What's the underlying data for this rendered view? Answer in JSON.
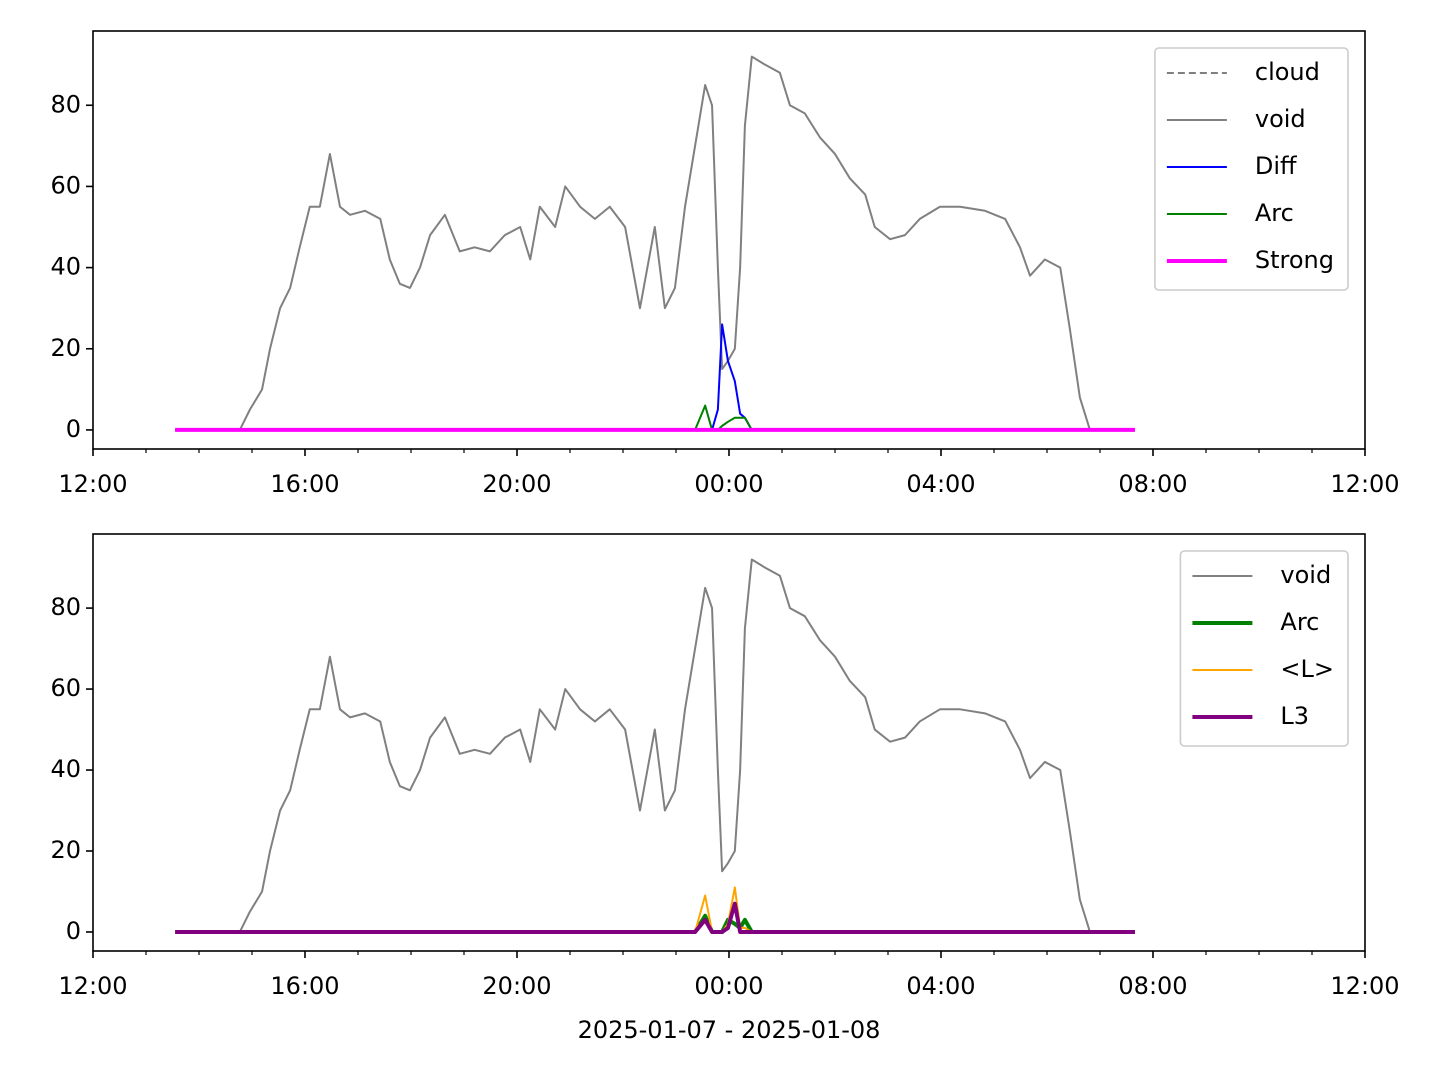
{
  "chart_data": [
    {
      "type": "line",
      "x": [
        13.55,
        14.77,
        14.96,
        15.19,
        15.34,
        15.53,
        15.72,
        15.9,
        16.09,
        16.28,
        16.47,
        16.66,
        16.85,
        17.13,
        17.42,
        17.6,
        17.79,
        17.98,
        18.17,
        18.36,
        18.64,
        18.92,
        19.2,
        19.49,
        19.77,
        20.06,
        20.25,
        20.43,
        20.72,
        20.91,
        21.19,
        21.47,
        21.75,
        22.04,
        22.32,
        22.6,
        22.79,
        22.98,
        23.17,
        23.36,
        23.55,
        23.68,
        23.79,
        23.87,
        23.98,
        24.11,
        24.21,
        24.3,
        24.43,
        24.68,
        24.96,
        25.15,
        25.43,
        25.72,
        26.0,
        26.28,
        26.57,
        26.75,
        27.04,
        27.32,
        27.6,
        27.98,
        28.36,
        28.83,
        29.21,
        29.49,
        29.68,
        29.96,
        30.25,
        30.43,
        30.62,
        30.81,
        31.66
      ],
      "xlim": [
        12,
        36
      ],
      "xticks": [
        {
          "value": 12,
          "label": "12:00"
        },
        {
          "value": 16,
          "label": "16:00"
        },
        {
          "value": 20,
          "label": "20:00"
        },
        {
          "value": 24,
          "label": "00:00"
        },
        {
          "value": 28,
          "label": "04:00"
        },
        {
          "value": 32,
          "label": "08:00"
        },
        {
          "value": 36,
          "label": "12:00"
        }
      ],
      "xminorticks": [
        13,
        14,
        15,
        17,
        18,
        19,
        21,
        22,
        23,
        25,
        26,
        27,
        29,
        30,
        31,
        33,
        34,
        35
      ],
      "ylim": [
        -4.7,
        98.3
      ],
      "yticks": [
        0,
        20,
        40,
        60,
        80
      ],
      "legend": "upper right",
      "series": [
        {
          "name": "cloud",
          "color": "#808080",
          "linestyle": "dashed",
          "linewidth": 2,
          "values": [
            0,
            0,
            0,
            0,
            0,
            0,
            0,
            0,
            0,
            0,
            0,
            0,
            0,
            0,
            0,
            0,
            0,
            0,
            0,
            0,
            0,
            0,
            0,
            0,
            0,
            0,
            0,
            0,
            0,
            0,
            0,
            0,
            0,
            0,
            0,
            0,
            0,
            0,
            0,
            0,
            0,
            0,
            0,
            0,
            0,
            0,
            0,
            0,
            0,
            0,
            0,
            0,
            0,
            0,
            0,
            0,
            0,
            0,
            0,
            0,
            0,
            0,
            0,
            0,
            0,
            0,
            0,
            0,
            0,
            0,
            0,
            0,
            0
          ]
        },
        {
          "name": "void",
          "color": "#808080",
          "linestyle": "solid",
          "linewidth": 2,
          "values": [
            0,
            0,
            5,
            10,
            20,
            30,
            35,
            45,
            55,
            55,
            68,
            55,
            53,
            54,
            52,
            42,
            36,
            35,
            40,
            48,
            53,
            44,
            45,
            44,
            48,
            50,
            42,
            55,
            50,
            60,
            55,
            52,
            55,
            50,
            30,
            50,
            30,
            35,
            55,
            70,
            85,
            80,
            40,
            15,
            17,
            20,
            40,
            75,
            92,
            90,
            88,
            80,
            78,
            72,
            68,
            62,
            58,
            50,
            47,
            48,
            52,
            55,
            55,
            54,
            52,
            45,
            38,
            42,
            40,
            25,
            8,
            0,
            0
          ]
        },
        {
          "name": "Diff",
          "color": "#0000ff",
          "linestyle": "solid",
          "linewidth": 2,
          "values": [
            0,
            0,
            0,
            0,
            0,
            0,
            0,
            0,
            0,
            0,
            0,
            0,
            0,
            0,
            0,
            0,
            0,
            0,
            0,
            0,
            0,
            0,
            0,
            0,
            0,
            0,
            0,
            0,
            0,
            0,
            0,
            0,
            0,
            0,
            0,
            0,
            0,
            0,
            0,
            0,
            0,
            0,
            5,
            26,
            17,
            12,
            4,
            3,
            0,
            0,
            0,
            0,
            0,
            0,
            0,
            0,
            0,
            0,
            0,
            0,
            0,
            0,
            0,
            0,
            0,
            0,
            0,
            0,
            0,
            0,
            0,
            0,
            0
          ]
        },
        {
          "name": "Arc",
          "color": "#008000",
          "linestyle": "solid",
          "linewidth": 2,
          "values": [
            0,
            0,
            0,
            0,
            0,
            0,
            0,
            0,
            0,
            0,
            0,
            0,
            0,
            0,
            0,
            0,
            0,
            0,
            0,
            0,
            0,
            0,
            0,
            0,
            0,
            0,
            0,
            0,
            0,
            0,
            0,
            0,
            0,
            0,
            0,
            0,
            0,
            0,
            0,
            0,
            6,
            0,
            0,
            1,
            2,
            3,
            3,
            3,
            0,
            0,
            0,
            0,
            0,
            0,
            0,
            0,
            0,
            0,
            0,
            0,
            0,
            0,
            0,
            0,
            0,
            0,
            0,
            0,
            0,
            0,
            0,
            0,
            0
          ]
        },
        {
          "name": "Strong",
          "color": "#ff00ff",
          "linestyle": "solid",
          "linewidth": 4,
          "values": [
            0,
            0,
            0,
            0,
            0,
            0,
            0,
            0,
            0,
            0,
            0,
            0,
            0,
            0,
            0,
            0,
            0,
            0,
            0,
            0,
            0,
            0,
            0,
            0,
            0,
            0,
            0,
            0,
            0,
            0,
            0,
            0,
            0,
            0,
            0,
            0,
            0,
            0,
            0,
            0,
            0,
            0,
            0,
            0,
            0,
            0,
            0,
            0,
            0,
            0,
            0,
            0,
            0,
            0,
            0,
            0,
            0,
            0,
            0,
            0,
            0,
            0,
            0,
            0,
            0,
            0,
            0,
            0,
            0,
            0,
            0,
            0,
            0
          ]
        }
      ]
    },
    {
      "type": "line",
      "x": [
        13.55,
        14.77,
        14.96,
        15.19,
        15.34,
        15.53,
        15.72,
        15.9,
        16.09,
        16.28,
        16.47,
        16.66,
        16.85,
        17.13,
        17.42,
        17.6,
        17.79,
        17.98,
        18.17,
        18.36,
        18.64,
        18.92,
        19.2,
        19.49,
        19.77,
        20.06,
        20.25,
        20.43,
        20.72,
        20.91,
        21.19,
        21.47,
        21.75,
        22.04,
        22.32,
        22.6,
        22.79,
        22.98,
        23.17,
        23.36,
        23.55,
        23.68,
        23.79,
        23.87,
        23.98,
        24.11,
        24.21,
        24.3,
        24.43,
        24.68,
        24.96,
        25.15,
        25.43,
        25.72,
        26.0,
        26.28,
        26.57,
        26.75,
        27.04,
        27.32,
        27.6,
        27.98,
        28.36,
        28.83,
        29.21,
        29.49,
        29.68,
        29.96,
        30.25,
        30.43,
        30.62,
        30.81,
        31.66
      ],
      "xlim": [
        12,
        36
      ],
      "xticks": [
        {
          "value": 12,
          "label": "12:00"
        },
        {
          "value": 16,
          "label": "16:00"
        },
        {
          "value": 20,
          "label": "20:00"
        },
        {
          "value": 24,
          "label": "00:00"
        },
        {
          "value": 28,
          "label": "04:00"
        },
        {
          "value": 32,
          "label": "08:00"
        },
        {
          "value": 36,
          "label": "12:00"
        }
      ],
      "xminorticks": [
        13,
        14,
        15,
        17,
        18,
        19,
        21,
        22,
        23,
        25,
        26,
        27,
        29,
        30,
        31,
        33,
        34,
        35
      ],
      "ylim": [
        -4.7,
        98.3
      ],
      "yticks": [
        0,
        20,
        40,
        60,
        80
      ],
      "xlabel": "2025-01-07 - 2025-01-08",
      "legend": "upper right",
      "series": [
        {
          "name": "void",
          "color": "#808080",
          "linestyle": "solid",
          "linewidth": 2,
          "values": [
            0,
            0,
            5,
            10,
            20,
            30,
            35,
            45,
            55,
            55,
            68,
            55,
            53,
            54,
            52,
            42,
            36,
            35,
            40,
            48,
            53,
            44,
            45,
            44,
            48,
            50,
            42,
            55,
            50,
            60,
            55,
            52,
            55,
            50,
            30,
            50,
            30,
            35,
            55,
            70,
            85,
            80,
            40,
            15,
            17,
            20,
            40,
            75,
            92,
            90,
            88,
            80,
            78,
            72,
            68,
            62,
            58,
            50,
            47,
            48,
            52,
            55,
            55,
            54,
            52,
            45,
            38,
            42,
            40,
            25,
            8,
            0,
            0
          ]
        },
        {
          "name": "Arc",
          "color": "#008000",
          "linestyle": "solid",
          "linewidth": 4,
          "values": [
            0,
            0,
            0,
            0,
            0,
            0,
            0,
            0,
            0,
            0,
            0,
            0,
            0,
            0,
            0,
            0,
            0,
            0,
            0,
            0,
            0,
            0,
            0,
            0,
            0,
            0,
            0,
            0,
            0,
            0,
            0,
            0,
            0,
            0,
            0,
            0,
            0,
            0,
            0,
            0,
            4,
            0,
            0,
            0,
            3,
            2,
            1,
            3,
            0,
            0,
            0,
            0,
            0,
            0,
            0,
            0,
            0,
            0,
            0,
            0,
            0,
            0,
            0,
            0,
            0,
            0,
            0,
            0,
            0,
            0,
            0,
            0,
            0
          ]
        },
        {
          "name": "<L>",
          "color": "#ffa500",
          "linestyle": "solid",
          "linewidth": 2,
          "values": [
            0,
            0,
            0,
            0,
            0,
            0,
            0,
            0,
            0,
            0,
            0,
            0,
            0,
            0,
            0,
            0,
            0,
            0,
            0,
            0,
            0,
            0,
            0,
            0,
            0,
            0,
            0,
            0,
            0,
            0,
            0,
            0,
            0,
            0,
            0,
            0,
            0,
            0,
            0,
            0,
            9,
            0,
            0,
            0,
            2,
            11,
            1,
            1,
            0,
            0,
            0,
            0,
            0,
            0,
            0,
            0,
            0,
            0,
            0,
            0,
            0,
            0,
            0,
            0,
            0,
            0,
            0,
            0,
            0,
            0,
            0,
            0,
            0
          ]
        },
        {
          "name": "L3",
          "color": "#800080",
          "linestyle": "solid",
          "linewidth": 4,
          "values": [
            0,
            0,
            0,
            0,
            0,
            0,
            0,
            0,
            0,
            0,
            0,
            0,
            0,
            0,
            0,
            0,
            0,
            0,
            0,
            0,
            0,
            0,
            0,
            0,
            0,
            0,
            0,
            0,
            0,
            0,
            0,
            0,
            0,
            0,
            0,
            0,
            0,
            0,
            0,
            0,
            3,
            0,
            0,
            0,
            1,
            7,
            0,
            0,
            0,
            0,
            0,
            0,
            0,
            0,
            0,
            0,
            0,
            0,
            0,
            0,
            0,
            0,
            0,
            0,
            0,
            0,
            0,
            0,
            0,
            0,
            0,
            0,
            0
          ]
        }
      ]
    }
  ]
}
